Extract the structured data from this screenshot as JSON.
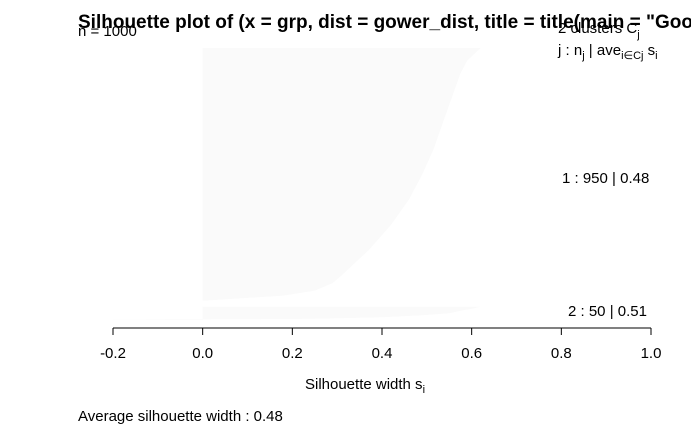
{
  "chart_data": {
    "type": "bar",
    "title": "Silhouette plot of (x = grp, dist = gower_dist, title = title(main = \"Goo",
    "n_label": "n = 1000",
    "clusters_header": {
      "prefix": "2  clusters  C",
      "sub": "j"
    },
    "column_header": {
      "j": "j :  n",
      "j_sub": "j",
      "sep": " | ave",
      "ave_sub": "i∈Cj",
      "s": "  s",
      "s_sub": "i"
    },
    "xlabel": {
      "text": "Silhouette width s",
      "sub": "i"
    },
    "xlim": [
      -0.2,
      1.0
    ],
    "x_ticks": [
      -0.2,
      0.0,
      0.2,
      0.4,
      0.6,
      0.8,
      1.0
    ],
    "x_tick_labels": [
      "-0.2",
      "0.0",
      "0.2",
      "0.4",
      "0.6",
      "0.8",
      "1.0"
    ],
    "average_label": "Average silhouette width :  0.48",
    "bar_color": "#fafafa",
    "clusters": [
      {
        "label": "1 :   950  |  0.48",
        "n": 950,
        "avg_width": 0.48,
        "profile": [
          [
            0.0,
            0.62
          ],
          [
            0.05,
            0.59
          ],
          [
            0.1,
            0.575
          ],
          [
            0.2,
            0.555
          ],
          [
            0.3,
            0.535
          ],
          [
            0.4,
            0.515
          ],
          [
            0.5,
            0.49
          ],
          [
            0.6,
            0.46
          ],
          [
            0.7,
            0.42
          ],
          [
            0.8,
            0.37
          ],
          [
            0.85,
            0.34
          ],
          [
            0.9,
            0.31
          ],
          [
            0.93,
            0.29
          ],
          [
            0.96,
            0.25
          ],
          [
            0.98,
            0.18
          ],
          [
            1.0,
            0.0
          ]
        ]
      },
      {
        "label": "2 :   50  |  0.51",
        "n": 50,
        "avg_width": 0.51,
        "profile": [
          [
            0.0,
            0.62
          ],
          [
            0.15,
            0.6
          ],
          [
            0.3,
            0.575
          ],
          [
            0.5,
            0.55
          ],
          [
            0.65,
            0.49
          ],
          [
            0.8,
            0.4
          ],
          [
            0.9,
            0.25
          ],
          [
            0.95,
            0.05
          ],
          [
            0.97,
            -0.1
          ],
          [
            0.99,
            -0.2
          ],
          [
            1.0,
            -0.2
          ]
        ]
      }
    ]
  }
}
